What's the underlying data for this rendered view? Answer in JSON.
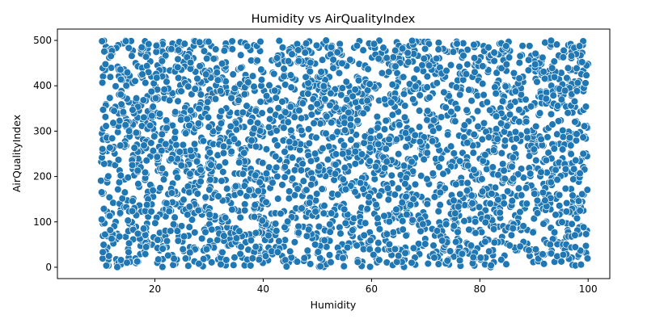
{
  "chart_data": {
    "type": "scatter",
    "title": "Humidity vs AirQualityIndex",
    "xlabel": "Humidity",
    "ylabel": "AirQualityIndex",
    "xlim": [
      2,
      104
    ],
    "ylim": [
      -25,
      525
    ],
    "xticks": [
      20,
      40,
      60,
      80,
      100
    ],
    "yticks": [
      0,
      100,
      200,
      300,
      400,
      500
    ],
    "grid": false,
    "legend": "none",
    "marker_color": "#1f77b4",
    "x_range": [
      10,
      100
    ],
    "y_range": [
      0,
      500
    ],
    "point_count": 3000,
    "points": [
      [
        12.1,
        471
      ],
      [
        15.8,
        312
      ],
      [
        18.4,
        205
      ],
      [
        21.3,
        488
      ],
      [
        24.7,
        133
      ],
      [
        27.9,
        402
      ],
      [
        30.2,
        58
      ],
      [
        33.6,
        266
      ],
      [
        36.1,
        441
      ],
      [
        39.4,
        17
      ],
      [
        42.8,
        351
      ],
      [
        45.3,
        192
      ],
      [
        48.9,
        473
      ],
      [
        51.2,
        84
      ],
      [
        54.6,
        298
      ],
      [
        57.9,
        412
      ],
      [
        60.3,
        146
      ],
      [
        63.7,
        27
      ],
      [
        66.2,
        389
      ],
      [
        69.8,
        241
      ],
      [
        72.4,
        495
      ],
      [
        75.1,
        108
      ],
      [
        78.6,
        327
      ],
      [
        81.3,
        62
      ],
      [
        84.9,
        433
      ],
      [
        87.2,
        174
      ],
      [
        90.5,
        285
      ],
      [
        93.8,
        12
      ],
      [
        96.4,
        398
      ],
      [
        99.1,
        221
      ],
      [
        10.4,
        96
      ],
      [
        13.9,
        355
      ],
      [
        17.3,
        29
      ],
      [
        20.8,
        247
      ],
      [
        23.2,
        379
      ],
      [
        26.5,
        182
      ],
      [
        29.9,
        467
      ],
      [
        32.4,
        110
      ],
      [
        35.8,
        336
      ],
      [
        38.2,
        72
      ],
      [
        41.6,
        456
      ],
      [
        44.1,
        229
      ],
      [
        47.5,
        14
      ],
      [
        50.9,
        372
      ],
      [
        53.3,
        160
      ],
      [
        56.8,
        484
      ],
      [
        59.2,
        51
      ],
      [
        62.6,
        275
      ],
      [
        65.1,
        423
      ],
      [
        68.4,
        101
      ],
      [
        71.9,
        319
      ],
      [
        74.3,
        6
      ],
      [
        77.7,
        447
      ],
      [
        80.2,
        198
      ],
      [
        83.5,
        384
      ],
      [
        86.9,
        37
      ],
      [
        89.3,
        257
      ],
      [
        92.7,
        493
      ],
      [
        95.2,
        122
      ],
      [
        98.6,
        343
      ],
      [
        11.2,
        187
      ],
      [
        14.6,
        419
      ],
      [
        17.9,
        64
      ],
      [
        21.5,
        306
      ],
      [
        24.1,
        478
      ],
      [
        27.3,
        13
      ],
      [
        30.8,
        231
      ],
      [
        33.1,
        397
      ],
      [
        36.6,
        139
      ],
      [
        39.9,
        289
      ],
      [
        42.3,
        44
      ],
      [
        45.8,
        482
      ],
      [
        48.2,
        213
      ],
      [
        51.7,
        327
      ],
      [
        54.1,
        88
      ],
      [
        57.4,
        365
      ],
      [
        60.9,
        19
      ],
      [
        63.2,
        449
      ],
      [
        66.8,
        176
      ],
      [
        69.1,
        262
      ],
      [
        72.7,
        31
      ],
      [
        75.9,
        412
      ],
      [
        78.3,
        144
      ],
      [
        81.8,
        301
      ],
      [
        84.2,
        471
      ],
      [
        87.6,
        82
      ],
      [
        90.1,
        358
      ],
      [
        93.4,
        205
      ],
      [
        96.9,
        461
      ],
      [
        99.6,
        47
      ]
    ]
  }
}
